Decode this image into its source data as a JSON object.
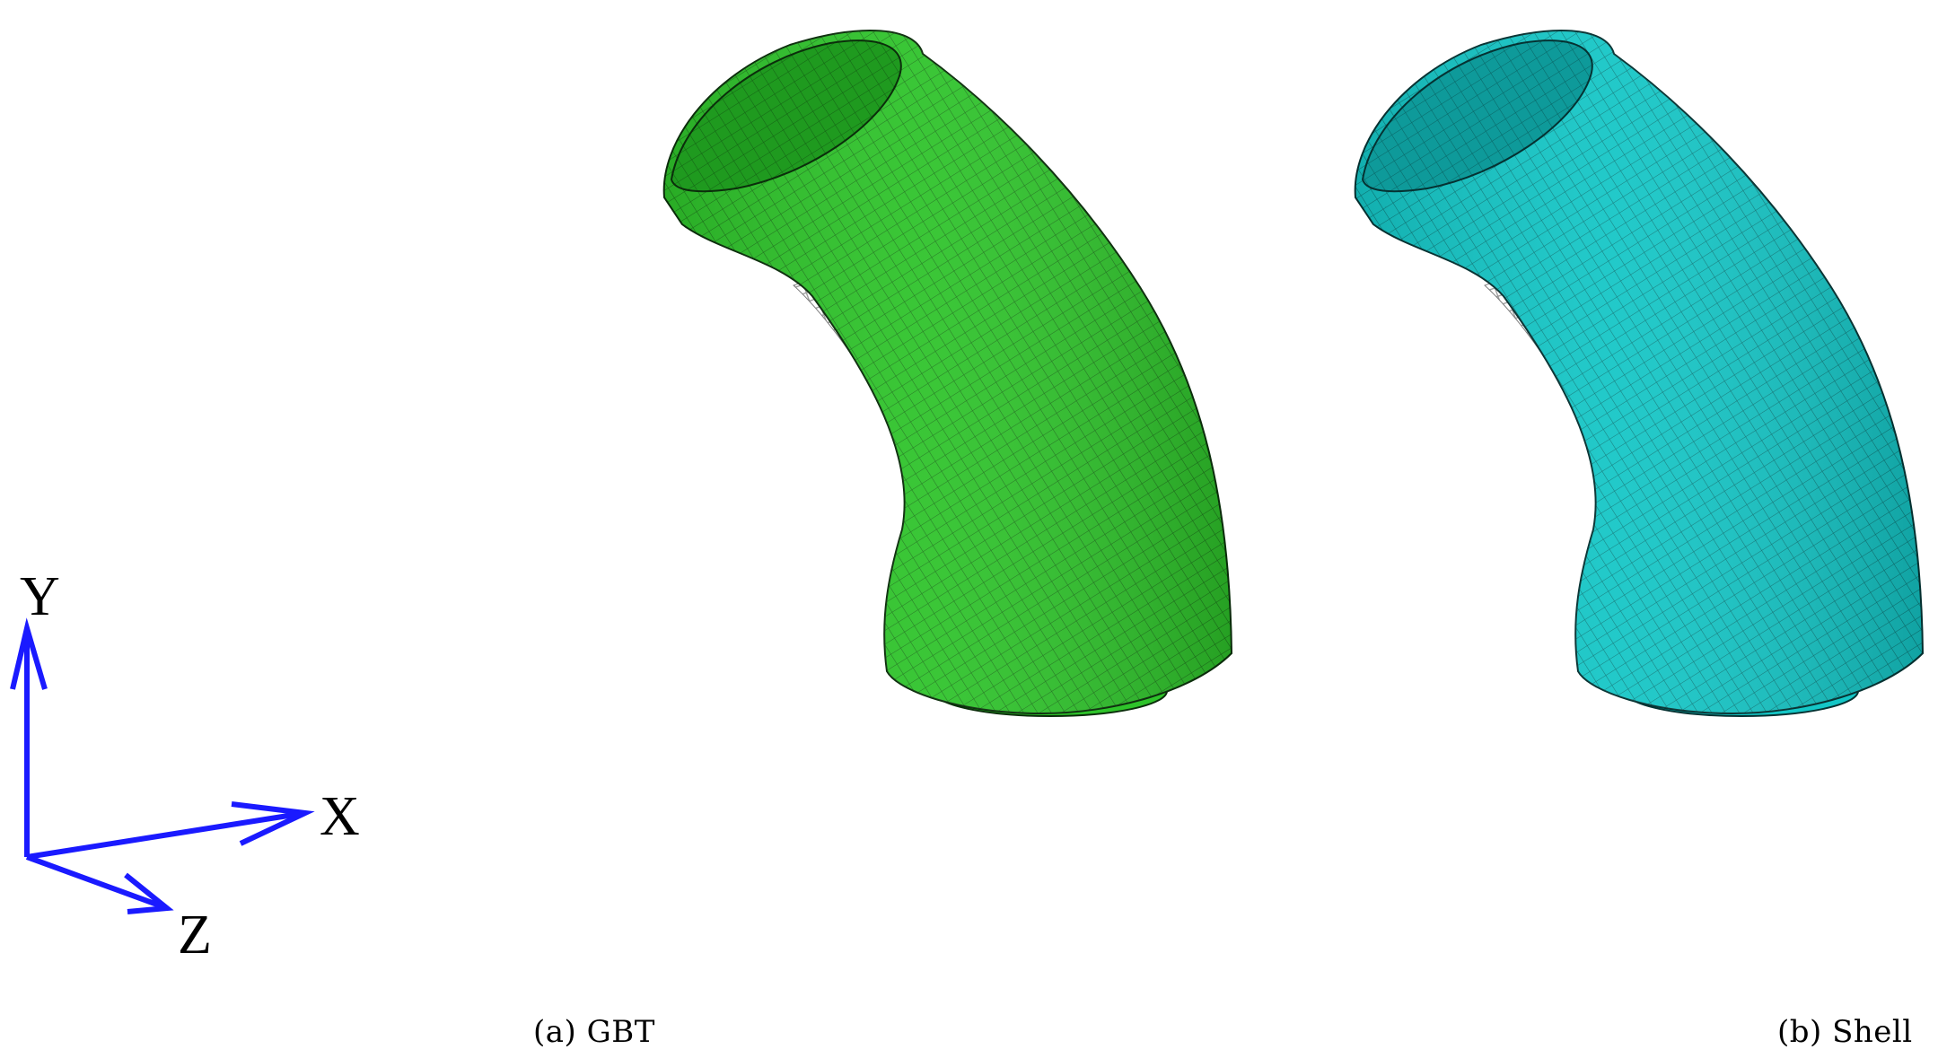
{
  "axes": {
    "color": "#1a1aff",
    "y_label": "Y",
    "x_label": "X",
    "z_label": "Z"
  },
  "panels": [
    {
      "caption": "(a) GBT",
      "fill": "#2ec32a",
      "inner_fill": "#1f9a1f",
      "mesh_color": "#0b2e0b"
    },
    {
      "caption": "(b) Shell",
      "fill": "#14c6c6",
      "inner_fill": "#0e9a9a",
      "mesh_color": "#053232"
    }
  ],
  "colors": {
    "background": "#ffffff",
    "inner_struts": "#9a9a9a"
  }
}
